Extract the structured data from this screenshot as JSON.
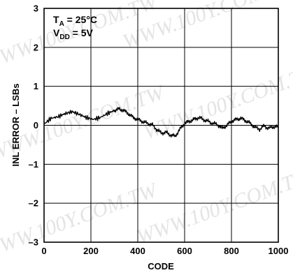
{
  "watermark": "WWW.100Y.COM.TW",
  "chart_data": {
    "type": "line",
    "xlabel": "CODE",
    "ylabel": "INL ERROR – LSBs",
    "xlim": [
      0,
      1000
    ],
    "ylim": [
      -3,
      3
    ],
    "x_ticks": [
      "0",
      "200",
      "400",
      "600",
      "800",
      "1000"
    ],
    "y_ticks": [
      "3",
      "2",
      "1",
      "0",
      "–1",
      "–2",
      "–3"
    ],
    "grid": true,
    "conditions": [
      {
        "main": "T",
        "sub": "A",
        "rest": " = 25°C"
      },
      {
        "main": "V",
        "sub": "DD",
        "rest": " = 5V"
      }
    ],
    "series": [
      {
        "color": "#000000",
        "x": [
          0,
          30,
          60,
          90,
          120,
          150,
          180,
          210,
          240,
          270,
          300,
          320,
          340,
          360,
          380,
          400,
          420,
          440,
          460,
          480,
          500,
          520,
          540,
          560,
          580,
          600,
          620,
          640,
          660,
          680,
          700,
          720,
          740,
          760,
          780,
          800,
          820,
          840,
          860,
          880,
          900,
          920,
          940,
          960,
          980,
          1000
        ],
        "y": [
          0.03,
          0.18,
          0.22,
          0.3,
          0.35,
          0.28,
          0.2,
          0.15,
          0.2,
          0.3,
          0.38,
          0.42,
          0.38,
          0.3,
          0.2,
          0.15,
          0.1,
          0.05,
          0.02,
          -0.1,
          -0.2,
          -0.18,
          -0.25,
          -0.28,
          -0.1,
          0.05,
          0.1,
          0.15,
          0.2,
          0.15,
          0.1,
          0.05,
          0.02,
          -0.08,
          0.0,
          0.1,
          0.15,
          0.18,
          0.12,
          0.05,
          -0.05,
          -0.1,
          -0.02,
          -0.08,
          -0.03,
          -0.05
        ]
      }
    ]
  }
}
